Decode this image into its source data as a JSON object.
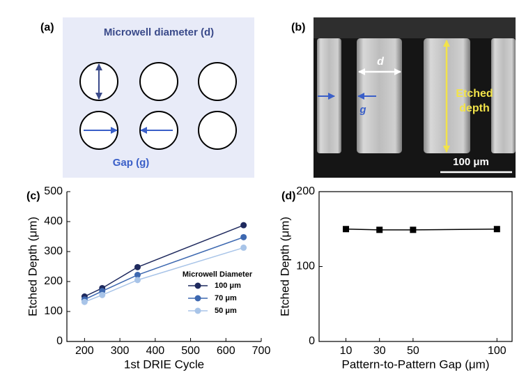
{
  "panel_a": {
    "label": "(a)",
    "title": "Microwell diameter (d)",
    "gap_label": "Gap (g)"
  },
  "panel_b": {
    "label": "(b)",
    "d_label": "d",
    "g_label": "g",
    "depth_label": [
      "Etched",
      "depth"
    ],
    "scale_bar": "100 μm"
  },
  "chart_data": [
    {
      "type": "line",
      "panel_label": "(c)",
      "x_label": "1st DRIE Cycle",
      "y_label": "Etched Depth (μm)",
      "x": [
        200,
        250,
        350,
        650
      ],
      "series": [
        {
          "name": "100 μm",
          "color": "#1f2a5e",
          "values": [
            150,
            178,
            248,
            388
          ]
        },
        {
          "name": "70 μm",
          "color": "#3d68b0",
          "values": [
            140,
            168,
            222,
            348
          ]
        },
        {
          "name": "50 μm",
          "color": "#a8c4e8",
          "values": [
            132,
            155,
            205,
            313
          ]
        }
      ],
      "legend_title": "Microwell Diameter",
      "legend": "lower-right",
      "marker": "circle",
      "frame": "axes",
      "xlim": [
        150,
        700
      ],
      "xticks": [
        200,
        300,
        400,
        500,
        600,
        700
      ],
      "ylim": [
        0,
        500
      ],
      "yticks": [
        0,
        100,
        200,
        300,
        400,
        500
      ]
    },
    {
      "type": "line",
      "panel_label": "(d)",
      "x_label": "Pattern-to-Pattern Gap (μm)",
      "y_label": "Etched Depth (μm)",
      "x": [
        10,
        30,
        50,
        100
      ],
      "values": [
        150,
        149,
        149,
        150
      ],
      "color": "#000000",
      "marker": "square",
      "frame": "box",
      "xlim": [
        -6,
        109
      ],
      "xticks": [
        10,
        30,
        50,
        100
      ],
      "ylim": [
        0,
        200
      ],
      "yticks": [
        0,
        100,
        200
      ]
    }
  ]
}
